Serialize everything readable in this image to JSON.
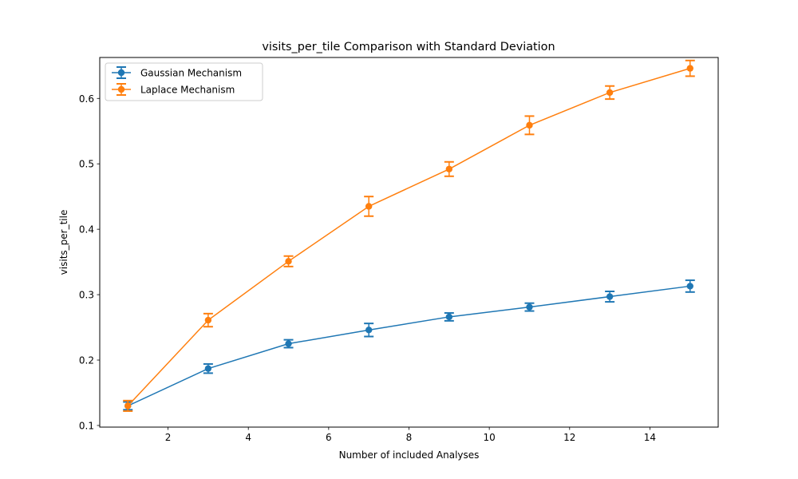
{
  "chart_data": {
    "type": "line",
    "title": "visits_per_tile Comparison with Standard Deviation",
    "xlabel": "Number of included Analyses",
    "ylabel": "visits_per_tile",
    "xlim": [
      0.3,
      15.7
    ],
    "ylim": [
      0.0975,
      0.6626
    ],
    "x_ticks": [
      2,
      4,
      6,
      8,
      10,
      12,
      14
    ],
    "y_ticks": [
      0.1,
      0.2,
      0.3,
      0.4,
      0.5,
      0.6
    ],
    "x": [
      1,
      3,
      5,
      7,
      9,
      11,
      13,
      15
    ],
    "grid": false,
    "legend_position": "top-left",
    "series": [
      {
        "name": "Gaussian Mechanism",
        "color": "#1f77b4",
        "values": [
          0.13,
          0.187,
          0.225,
          0.246,
          0.266,
          0.281,
          0.297,
          0.313
        ],
        "errors": [
          0.006,
          0.007,
          0.006,
          0.01,
          0.006,
          0.006,
          0.008,
          0.009
        ]
      },
      {
        "name": "Laplace Mechanism",
        "color": "#ff7f0e",
        "values": [
          0.13,
          0.261,
          0.351,
          0.435,
          0.492,
          0.559,
          0.609,
          0.646
        ],
        "errors": [
          0.008,
          0.01,
          0.008,
          0.015,
          0.011,
          0.014,
          0.01,
          0.012
        ]
      }
    ]
  }
}
